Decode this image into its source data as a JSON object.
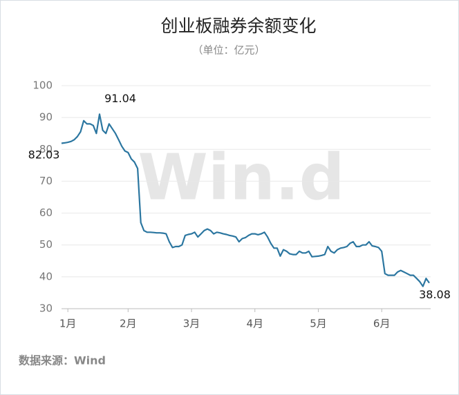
{
  "chart_data": {
    "type": "line",
    "title": "创业板融券余额变化",
    "subtitle": "（单位：亿元）",
    "source": "数据来源：Wind",
    "watermark": "Win.d",
    "categories": [
      null,
      null,
      "1月",
      null,
      null,
      null,
      null,
      null,
      null,
      null,
      null,
      null,
      null,
      null,
      null,
      null,
      null,
      null,
      null,
      null,
      null,
      "2月",
      null,
      null,
      null,
      null,
      null,
      null,
      null,
      null,
      null,
      null,
      null,
      null,
      null,
      null,
      null,
      null,
      null,
      null,
      null,
      "3月",
      null,
      null,
      null,
      null,
      null,
      null,
      null,
      null,
      null,
      null,
      null,
      null,
      null,
      null,
      null,
      null,
      null,
      null,
      null,
      "4月",
      null,
      null,
      null,
      null,
      null,
      null,
      null,
      null,
      null,
      null,
      null,
      null,
      null,
      null,
      null,
      null,
      null,
      null,
      null,
      "5月",
      null,
      null,
      null,
      null,
      null,
      null,
      null,
      null,
      null,
      null,
      null,
      null,
      null,
      null,
      null,
      null,
      null,
      null,
      null,
      "6月",
      null,
      null,
      null,
      null,
      null,
      null,
      null,
      null,
      null,
      null,
      null,
      null,
      null,
      null,
      null
    ],
    "series": [
      {
        "name": "创业板融券余额",
        "color": "#2b76a0",
        "values": [
          81.9,
          82.03,
          82.2,
          82.5,
          83,
          84,
          85.5,
          89,
          88,
          88,
          87.5,
          85,
          91.04,
          86,
          85,
          88,
          86.5,
          85,
          83,
          81,
          79.5,
          79,
          77,
          76,
          74,
          57,
          54.5,
          54,
          54,
          53.9,
          53.8,
          53.8,
          53.7,
          53.5,
          51,
          49.2,
          49.5,
          49.5,
          50,
          53,
          53.3,
          53.5,
          54,
          52.5,
          53.5,
          54.5,
          55,
          54.5,
          53.5,
          54,
          53.8,
          53.5,
          53.3,
          53,
          52.8,
          52.5,
          51,
          52,
          52.3,
          53,
          53.5,
          53.5,
          53.2,
          53.5,
          54,
          52.5,
          50.5,
          49,
          49,
          46.5,
          48.5,
          48,
          47.2,
          47,
          47,
          48,
          47.5,
          47.5,
          48,
          46.3,
          46.4,
          46.5,
          46.7,
          47,
          49.5,
          48,
          47.5,
          48.5,
          49,
          49.2,
          49.5,
          50.5,
          51,
          49.5,
          49.5,
          50,
          50,
          51,
          49.7,
          49.5,
          49.2,
          48,
          41,
          40.5,
          40.5,
          40.5,
          41.5,
          42,
          41.5,
          41,
          40.5,
          40.5,
          39.5,
          38.5,
          37,
          39.5,
          38.08
        ]
      }
    ],
    "data_labels": [
      1,
      12,
      116
    ],
    "ylim": [
      30,
      100
    ],
    "yticks": [
      30,
      40,
      50,
      60,
      70,
      80,
      90,
      100
    ],
    "grid": true
  }
}
